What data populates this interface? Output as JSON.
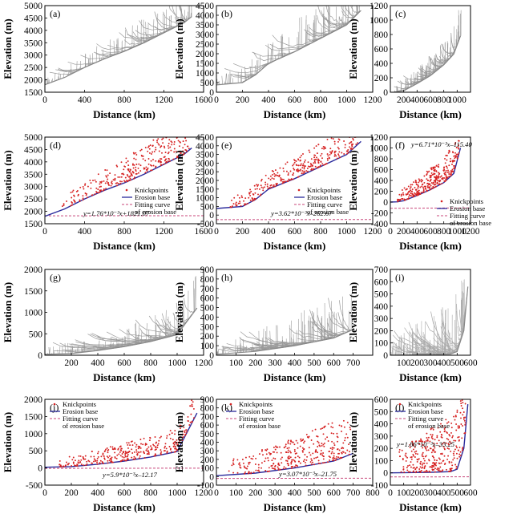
{
  "chart_data": [
    {
      "label": "(a)",
      "type": "line",
      "xlabel": "Distance (km)",
      "ylabel": "Elevation (m)",
      "xlim": [
        0,
        1600
      ],
      "ylim": [
        1500,
        5000
      ],
      "xticks": [
        "0",
        "400",
        "800",
        "1200",
        "1600"
      ],
      "yticks": [
        "1500",
        "2000",
        "2500",
        "3000",
        "3500",
        "4000",
        "4500",
        "5000"
      ],
      "base": [
        [
          0,
          1800
        ],
        [
          200,
          2100
        ],
        [
          400,
          2500
        ],
        [
          600,
          2850
        ],
        [
          800,
          3150
        ],
        [
          1000,
          3500
        ],
        [
          1200,
          3900
        ],
        [
          1400,
          4300
        ],
        [
          1480,
          4560
        ]
      ],
      "xmax": 1480,
      "peak_amp": 1400,
      "color": "#999999"
    },
    {
      "label": "(b)",
      "type": "line",
      "xlabel": "Distance (km)",
      "ylabel": "Elevation (m)",
      "xlim": [
        0,
        1200
      ],
      "ylim": [
        0,
        4500
      ],
      "xticks": [
        "0",
        "200",
        "400",
        "600",
        "800",
        "1000",
        "1200"
      ],
      "yticks": [
        "0",
        "500",
        "1000",
        "1500",
        "2000",
        "2500",
        "3000",
        "3500",
        "4000",
        "4500"
      ],
      "base": [
        [
          0,
          380
        ],
        [
          200,
          500
        ],
        [
          300,
          900
        ],
        [
          400,
          1500
        ],
        [
          600,
          2100
        ],
        [
          800,
          2800
        ],
        [
          1000,
          3500
        ],
        [
          1110,
          4250
        ]
      ],
      "xmax": 1110,
      "peak_amp": 2500,
      "color": "#999999"
    },
    {
      "label": "(c)",
      "type": "line",
      "xlabel": "Distance (km)",
      "ylabel": "Elevation (m)",
      "xlim": [
        0,
        1200
      ],
      "ylim": [
        0,
        1200
      ],
      "xticks": [
        "200",
        "400",
        "600",
        "800",
        "1000"
      ],
      "yticks": [
        "0",
        "200",
        "400",
        "600",
        "800",
        "1000",
        "1200"
      ],
      "base": [
        [
          50,
          0
        ],
        [
          200,
          20
        ],
        [
          400,
          120
        ],
        [
          600,
          230
        ],
        [
          800,
          380
        ],
        [
          950,
          530
        ],
        [
          1050,
          780
        ]
      ],
      "xmax": 1060,
      "peak_amp": 450,
      "color": "#999999"
    },
    {
      "label": "(d)",
      "type": "scatter",
      "xlabel": "Distance (km)",
      "ylabel": "Elevation (m)",
      "xlim": [
        0,
        1600
      ],
      "ylim": [
        1500,
        5000
      ],
      "xticks": [
        "0",
        "400",
        "800",
        "1200",
        "1600"
      ],
      "yticks": [
        "1500",
        "2000",
        "2500",
        "3000",
        "3500",
        "4000",
        "4500",
        "5000"
      ],
      "base": [
        [
          0,
          1800
        ],
        [
          200,
          2100
        ],
        [
          400,
          2500
        ],
        [
          600,
          2850
        ],
        [
          800,
          3150
        ],
        [
          1000,
          3500
        ],
        [
          1200,
          3900
        ],
        [
          1400,
          4300
        ],
        [
          1480,
          4560
        ]
      ],
      "fit": [
        1.76,
        1821.07
      ],
      "xmax": 1480,
      "peak_amp": 1300,
      "legend": {
        "knickpoints": "Knickpoints",
        "erosion_base": "Erosion base",
        "fit_line1": "Fitting curve",
        "fit_line2": "of erosion base"
      },
      "equation": "y=1.76*10⁻³x+1821.07"
    },
    {
      "label": "(e)",
      "type": "scatter",
      "xlabel": "Distance (km)",
      "ylabel": "Elevation (m)",
      "xlim": [
        0,
        1200
      ],
      "ylim": [
        -500,
        4500
      ],
      "xticks": [
        "0",
        "200",
        "400",
        "600",
        "800",
        "1000",
        "1200"
      ],
      "yticks": [
        "-500",
        "0",
        "500",
        "1000",
        "1500",
        "2000",
        "2500",
        "3000",
        "3500",
        "4000",
        "4500"
      ],
      "base": [
        [
          0,
          380
        ],
        [
          200,
          500
        ],
        [
          300,
          900
        ],
        [
          400,
          1500
        ],
        [
          600,
          2100
        ],
        [
          800,
          2800
        ],
        [
          1000,
          3500
        ],
        [
          1110,
          4250
        ]
      ],
      "fit": [
        3.62,
        -262.67
      ],
      "xmax": 1110,
      "peak_amp": 1600,
      "legend": {
        "knickpoints": "Knickpoints",
        "erosion_base": "Erosion base",
        "fit_line1": "Fitting curve",
        "fit_line2": "of erosion base"
      },
      "equation": "y=3.62*10⁻³x–262.67"
    },
    {
      "label": "(f)",
      "type": "scatter",
      "xlabel": "Distance (km)",
      "ylabel": "Elevation (m)",
      "xlim": [
        0,
        1200
      ],
      "ylim": [
        -400,
        1200
      ],
      "xticks": [
        "0",
        "200",
        "400",
        "600",
        "800",
        "1000",
        "1200"
      ],
      "yticks": [
        "-400",
        "-200",
        "0",
        "200",
        "400",
        "600",
        "800",
        "1000",
        "1200"
      ],
      "base": [
        [
          0,
          0
        ],
        [
          100,
          5
        ],
        [
          200,
          25
        ],
        [
          400,
          120
        ],
        [
          600,
          230
        ],
        [
          800,
          360
        ],
        [
          950,
          530
        ],
        [
          1050,
          1000
        ]
      ],
      "fit": [
        6.71,
        -115.4
      ],
      "xmax": 1050,
      "peak_amp": 500,
      "legend": {
        "knickpoints": "Knickpoints",
        "erosion_base": "Erosion base",
        "fit_line1": "Fitting curve",
        "fit_line2": "of erosion base"
      },
      "equation": "y=6.71*10⁻³x–115.40"
    },
    {
      "label": "(g)",
      "type": "line",
      "xlabel": "Distance (km)",
      "ylabel": "Elevation (m)",
      "xlim": [
        0,
        1200
      ],
      "ylim": [
        0,
        2000
      ],
      "xticks": [
        "200",
        "400",
        "600",
        "800",
        "1000",
        "1200"
      ],
      "yticks": [
        "0",
        "500",
        "1000",
        "1500",
        "2000"
      ],
      "base": [
        [
          0,
          20
        ],
        [
          200,
          40
        ],
        [
          400,
          110
        ],
        [
          600,
          200
        ],
        [
          800,
          320
        ],
        [
          1000,
          480
        ],
        [
          1150,
          1100
        ]
      ],
      "xmax": 1150,
      "peak_amp": 800,
      "color": "#999999"
    },
    {
      "label": "(h)",
      "type": "line",
      "xlabel": "Distance (km)",
      "ylabel": "Elevation (m)",
      "xlim": [
        0,
        800
      ],
      "ylim": [
        0,
        900
      ],
      "xticks": [
        "100",
        "200",
        "300",
        "400",
        "500",
        "600",
        "700"
      ],
      "yticks": [
        "0",
        "100",
        "200",
        "300",
        "400",
        "500",
        "600",
        "700",
        "800",
        "900"
      ],
      "base": [
        [
          0,
          10
        ],
        [
          200,
          40
        ],
        [
          400,
          100
        ],
        [
          600,
          180
        ],
        [
          700,
          270
        ]
      ],
      "xmax": 700,
      "peak_amp": 500,
      "color": "#999999"
    },
    {
      "label": "(i)",
      "type": "line",
      "xlabel": "Distance (km)",
      "ylabel": "Elevation (m)",
      "xlim": [
        0,
        600
      ],
      "ylim": [
        0,
        700
      ],
      "xticks": [
        "100",
        "200",
        "300",
        "400",
        "500",
        "600"
      ],
      "yticks": [
        "0",
        "100",
        "200",
        "300",
        "400",
        "500",
        "600",
        "700"
      ],
      "base": [
        [
          0,
          0
        ],
        [
          300,
          5
        ],
        [
          450,
          10
        ],
        [
          500,
          30
        ],
        [
          550,
          200
        ],
        [
          580,
          560
        ]
      ],
      "xmax": 580,
      "peak_amp": 550,
      "color": "#aaaaaa"
    },
    {
      "label": "(j)",
      "type": "scatter",
      "xlabel": "Distance (km)",
      "ylabel": "Elevation (m)",
      "xlim": [
        0,
        1200
      ],
      "ylim": [
        -500,
        2000
      ],
      "xticks": [
        "0",
        "200",
        "400",
        "600",
        "800",
        "1000",
        "1200"
      ],
      "yticks": [
        "-500",
        "0",
        "500",
        "1000",
        "1500",
        "2000"
      ],
      "base": [
        [
          0,
          20
        ],
        [
          200,
          40
        ],
        [
          400,
          110
        ],
        [
          600,
          200
        ],
        [
          800,
          320
        ],
        [
          1000,
          480
        ],
        [
          1150,
          1600
        ]
      ],
      "fit": [
        5.9,
        -12.17
      ],
      "xmax": 1150,
      "peak_amp": 700,
      "legend": {
        "knickpoints": "Knickpoints",
        "erosion_base": "Erosion base",
        "fit_line1": "Fitting curve",
        "fit_line2": "of erosion base"
      },
      "equation": "y=5.9*10⁻³x–12.17"
    },
    {
      "label": "(k)",
      "type": "scatter",
      "xlabel": "Distance (km)",
      "ylabel": "Elevation (m)",
      "xlim": [
        0,
        800
      ],
      "ylim": [
        -100,
        900
      ],
      "xticks": [
        "0",
        "100",
        "200",
        "300",
        "400",
        "500",
        "600",
        "700",
        "800"
      ],
      "yticks": [
        "-100",
        "0",
        "100",
        "200",
        "300",
        "400",
        "500",
        "600",
        "700",
        "800",
        "900"
      ],
      "base": [
        [
          0,
          10
        ],
        [
          200,
          40
        ],
        [
          400,
          100
        ],
        [
          600,
          180
        ],
        [
          700,
          270
        ]
      ],
      "fit": [
        3.07,
        -21.75
      ],
      "xmax": 700,
      "peak_amp": 450,
      "legend": {
        "knickpoints": "Knickpoints",
        "erosion_base": "Erosion base",
        "fit_line1": "Fitting curve",
        "fit_line2": "of erosion base"
      },
      "equation": "y=3.07*10⁻³x–21.75"
    },
    {
      "label": "(l)",
      "type": "scatter",
      "xlabel": "Distance (km)",
      "ylabel": "Elevation (m)",
      "xlim": [
        0,
        600
      ],
      "ylim": [
        -100,
        600
      ],
      "xticks": [
        "0",
        "100",
        "200",
        "300",
        "400",
        "500",
        "600"
      ],
      "yticks": [
        "-100",
        "0",
        "100",
        "200",
        "300",
        "400",
        "500",
        "600"
      ],
      "base": [
        [
          0,
          0
        ],
        [
          300,
          5
        ],
        [
          450,
          10
        ],
        [
          500,
          30
        ],
        [
          550,
          200
        ],
        [
          580,
          560
        ]
      ],
      "fit": [
        1.86,
        -33.25
      ],
      "xmax": 580,
      "peak_amp": 480,
      "legend": {
        "knickpoints": "Knickpoints",
        "erosion_base": "Erosion base",
        "fit_line1": "Fitting curve",
        "fit_line2": "of erosion base"
      },
      "equation": "y=1.86*10⁻³x–33.25"
    }
  ],
  "colors": {
    "knickpoints": "#d62020",
    "erosion_base": "#2a2a9c",
    "fit": "#c8467a",
    "profiles": "#999999",
    "frame": "#000000"
  }
}
